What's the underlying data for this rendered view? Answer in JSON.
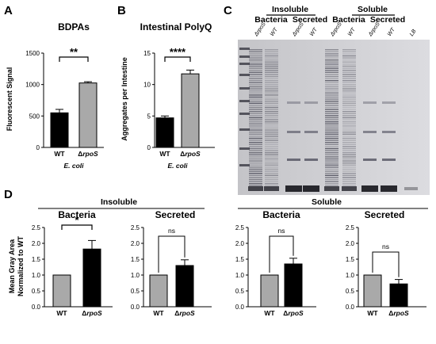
{
  "panel_labels": {
    "a": "A",
    "b": "B",
    "c": "C",
    "d": "D"
  },
  "colors": {
    "black_bar": "#000000",
    "grey_bar": "#a9a9a9"
  },
  "gel": {
    "headers": [
      "Insoluble",
      "Soluble"
    ],
    "subheaders": [
      "Bacteria",
      "Secreted",
      "Bacteria",
      "Secreted"
    ],
    "lanes": [
      "ΔrpoS",
      "WT",
      "ΔrpoS",
      "WT",
      "ΔrpoS",
      "WT",
      "ΔrpoS",
      "WT",
      "LB"
    ]
  },
  "panel_d": {
    "insoluble_header": "Insoluble",
    "soluble_header": "Soluble"
  },
  "chart_data": [
    {
      "type": "bar",
      "panel": "A",
      "title": "BDPAs",
      "ylabel": "Fluorescent Signal",
      "xlabel": "E. coli",
      "categories": [
        "WT",
        "ΔrpoS"
      ],
      "category_display": [
        "WT",
        "Δ",
        "rpoS"
      ],
      "values": [
        550,
        1025
      ],
      "errors": [
        55,
        20
      ],
      "colors": [
        "#000000",
        "#a9a9a9"
      ],
      "ylim": [
        0,
        1500
      ],
      "yticks": [
        0,
        500,
        1000,
        1500
      ],
      "significance": "**"
    },
    {
      "type": "bar",
      "panel": "B",
      "title": "Intestinal PolyQ",
      "ylabel": "Aggregates per Intestine",
      "xlabel": "E. coli",
      "categories": [
        "WT",
        "ΔrpoS"
      ],
      "category_display": [
        "WT",
        "Δ",
        "rpoS"
      ],
      "values": [
        4.7,
        11.7
      ],
      "errors": [
        0.3,
        0.6
      ],
      "colors": [
        "#000000",
        "#a9a9a9"
      ],
      "ylim": [
        0,
        15
      ],
      "yticks": [
        0,
        5,
        10,
        15
      ],
      "significance": "****"
    },
    {
      "type": "bar",
      "panel": "D",
      "group": "Insoluble",
      "title": "Bacteria",
      "ylabel": "Mean Gray Area Normalized to WT",
      "categories": [
        "WT",
        "ΔrpoS"
      ],
      "category_display": [
        "WT",
        "Δ",
        "rpoS"
      ],
      "values": [
        1.0,
        1.82
      ],
      "errors": [
        0,
        0.27
      ],
      "colors": [
        "#a9a9a9",
        "#000000"
      ],
      "ylim": [
        0,
        2.5
      ],
      "yticks": [
        0,
        0.5,
        1.0,
        1.5,
        2.0,
        2.5
      ],
      "significance": "*"
    },
    {
      "type": "bar",
      "panel": "D",
      "group": "Insoluble",
      "title": "Secreted",
      "categories": [
        "WT",
        "ΔrpoS"
      ],
      "category_display": [
        "WT",
        "Δ",
        "rpoS"
      ],
      "values": [
        1.0,
        1.3
      ],
      "errors": [
        0,
        0.18
      ],
      "colors": [
        "#a9a9a9",
        "#000000"
      ],
      "ylim": [
        0,
        2.5
      ],
      "yticks": [
        0,
        0.5,
        1.0,
        1.5,
        2.0,
        2.5
      ],
      "significance": "ns"
    },
    {
      "type": "bar",
      "panel": "D",
      "group": "Soluble",
      "title": "Bacteria",
      "categories": [
        "WT",
        "ΔrpoS"
      ],
      "category_display": [
        "WT",
        "Δ",
        "rpoS"
      ],
      "values": [
        1.0,
        1.35
      ],
      "errors": [
        0,
        0.18
      ],
      "colors": [
        "#a9a9a9",
        "#000000"
      ],
      "ylim": [
        0,
        2.5
      ],
      "yticks": [
        0,
        0.5,
        1.0,
        1.5,
        2.0,
        2.5
      ],
      "significance": "ns"
    },
    {
      "type": "bar",
      "panel": "D",
      "group": "Soluble",
      "title": "Secreted",
      "categories": [
        "WT",
        "ΔrpoS"
      ],
      "category_display": [
        "WT",
        "Δ",
        "rpoS"
      ],
      "values": [
        1.0,
        0.72
      ],
      "errors": [
        0,
        0.14
      ],
      "colors": [
        "#a9a9a9",
        "#000000"
      ],
      "ylim": [
        0,
        2.5
      ],
      "yticks": [
        0,
        0.5,
        1.0,
        1.5,
        2.0,
        2.5
      ],
      "significance": "ns"
    }
  ]
}
